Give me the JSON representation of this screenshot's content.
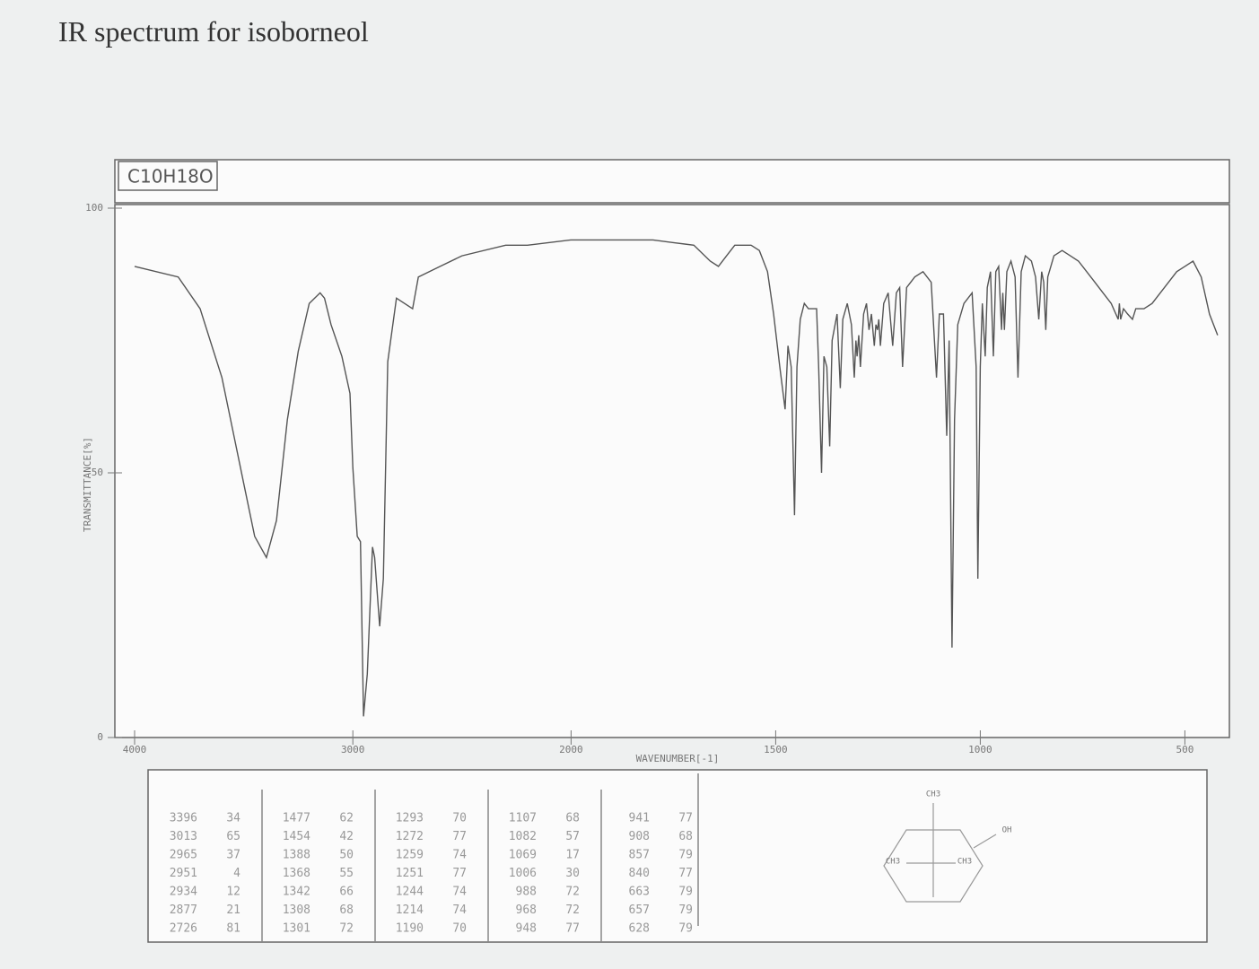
{
  "chart_data": {
    "type": "line",
    "title": "IR spectrum for isoborneol",
    "formula": "C10H18O",
    "x_label": "WAVENUMBER[-1]",
    "y_label": "TRANSMITTANCE[%]",
    "x_scale_break": 2000,
    "xlim": [
      4000,
      400
    ],
    "xticks": [
      4000,
      3000,
      2000,
      1500,
      1000,
      500
    ],
    "ylim": [
      0,
      100
    ],
    "yticks": [
      0,
      50,
      100
    ],
    "x": [
      4000,
      3800,
      3700,
      3600,
      3500,
      3450,
      3396,
      3350,
      3300,
      3250,
      3200,
      3150,
      3130,
      3100,
      3050,
      3013,
      3000,
      2980,
      2965,
      2951,
      2934,
      2910,
      2900,
      2877,
      2860,
      2840,
      2800,
      2726,
      2700,
      2600,
      2500,
      2300,
      2200,
      2000,
      1900,
      1800,
      1750,
      1700,
      1660,
      1640,
      1620,
      1600,
      1560,
      1540,
      1520,
      1505,
      1490,
      1477,
      1470,
      1462,
      1454,
      1448,
      1440,
      1430,
      1420,
      1400,
      1395,
      1388,
      1382,
      1375,
      1368,
      1362,
      1350,
      1342,
      1336,
      1325,
      1315,
      1308,
      1304,
      1301,
      1297,
      1293,
      1285,
      1278,
      1272,
      1266,
      1259,
      1255,
      1251,
      1248,
      1244,
      1236,
      1225,
      1214,
      1205,
      1197,
      1190,
      1180,
      1160,
      1140,
      1120,
      1107,
      1100,
      1090,
      1082,
      1076,
      1069,
      1063,
      1055,
      1040,
      1020,
      1010,
      1006,
      1000,
      995,
      988,
      983,
      975,
      968,
      962,
      955,
      948,
      945,
      941,
      935,
      925,
      915,
      908,
      900,
      890,
      875,
      865,
      857,
      850,
      845,
      840,
      835,
      820,
      800,
      780,
      760,
      740,
      720,
      700,
      680,
      663,
      660,
      657,
      650,
      640,
      628,
      620,
      600,
      580,
      560,
      540,
      520,
      500,
      480,
      460,
      440,
      420
    ],
    "series": [
      {
        "color": "#555555",
        "values": [
          89,
          87,
          81,
          68,
          48,
          38,
          34,
          41,
          60,
          73,
          82,
          84,
          83,
          78,
          72,
          65,
          51,
          38,
          37,
          4,
          12,
          36,
          34,
          21,
          30,
          71,
          83,
          81,
          87,
          89,
          91,
          93,
          93,
          94,
          94,
          94,
          93.5,
          93,
          90,
          89,
          91,
          93,
          93,
          92,
          88,
          80,
          70,
          62,
          74,
          70,
          42,
          70,
          79,
          82,
          81,
          81,
          70,
          50,
          72,
          70,
          55,
          75,
          80,
          66,
          79,
          82,
          78,
          68,
          75,
          72,
          76,
          70,
          80,
          82,
          77,
          80,
          74,
          78,
          77,
          79,
          74,
          82,
          84,
          74,
          84,
          85,
          70,
          85,
          87,
          88,
          86,
          68,
          80,
          80,
          57,
          75,
          17,
          60,
          78,
          82,
          84,
          70,
          30,
          70,
          82,
          72,
          85,
          88,
          72,
          88,
          89,
          77,
          84,
          77,
          88,
          90,
          87,
          68,
          88,
          91,
          90,
          87,
          79,
          88,
          86,
          77,
          87,
          91,
          92,
          91,
          90,
          88,
          86,
          84,
          82,
          79,
          82,
          79,
          81,
          80,
          79,
          81,
          81,
          82,
          84,
          86,
          88,
          89,
          90,
          87,
          80,
          76
        ]
      }
    ]
  },
  "peak_table": [
    [
      [
        3396,
        34
      ],
      [
        3013,
        65
      ],
      [
        2965,
        37
      ],
      [
        2951,
        4
      ],
      [
        2934,
        12
      ],
      [
        2877,
        21
      ],
      [
        2726,
        81
      ]
    ],
    [
      [
        1477,
        62
      ],
      [
        1454,
        42
      ],
      [
        1388,
        50
      ],
      [
        1368,
        55
      ],
      [
        1342,
        66
      ],
      [
        1308,
        68
      ],
      [
        1301,
        72
      ]
    ],
    [
      [
        1293,
        70
      ],
      [
        1272,
        77
      ],
      [
        1259,
        74
      ],
      [
        1251,
        77
      ],
      [
        1244,
        74
      ],
      [
        1214,
        74
      ],
      [
        1190,
        70
      ]
    ],
    [
      [
        1107,
        68
      ],
      [
        1082,
        57
      ],
      [
        1069,
        17
      ],
      [
        1006,
        30
      ],
      [
        988,
        72
      ],
      [
        968,
        72
      ],
      [
        948,
        77
      ]
    ],
    [
      [
        941,
        77
      ],
      [
        908,
        68
      ],
      [
        857,
        79
      ],
      [
        840,
        77
      ],
      [
        663,
        79
      ],
      [
        657,
        79
      ],
      [
        628,
        79
      ]
    ]
  ],
  "structure": {
    "labels": [
      "CH3",
      "OH",
      "CH3",
      "CH3"
    ]
  }
}
